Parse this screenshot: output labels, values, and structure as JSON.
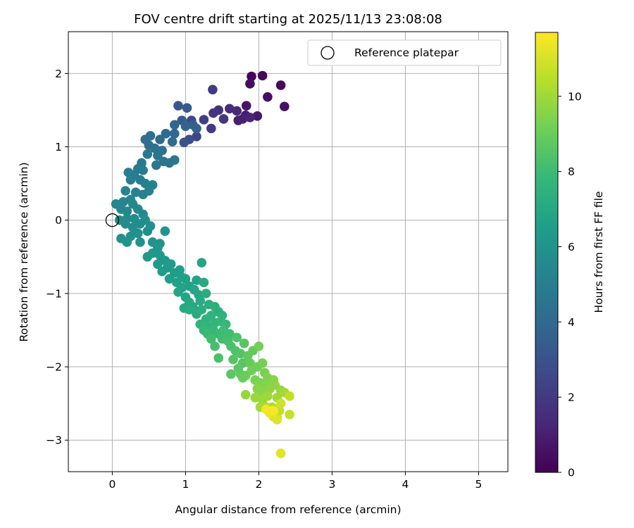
{
  "chart_data": {
    "type": "scatter",
    "title": "FOV centre drift starting at 2025/11/13 23:08:08",
    "xlabel": "Angular distance from reference (arcmin)",
    "ylabel": "Rotation from reference (arcmin)",
    "xlim": [
      -0.6,
      5.4
    ],
    "ylim": [
      -3.43,
      2.57
    ],
    "xticks": [
      0,
      1,
      2,
      3,
      4,
      5
    ],
    "xtick_labels": [
      "0",
      "1",
      "2",
      "3",
      "4",
      "5"
    ],
    "yticks": [
      -3,
      -2,
      -1,
      0,
      1,
      2
    ],
    "ytick_labels": [
      "−3",
      "−2",
      "−1",
      "0",
      "1",
      "2"
    ],
    "grid": true,
    "legend": {
      "placement": "upper-right",
      "entries": [
        "Reference platepar"
      ]
    },
    "reference_point": {
      "x": 0,
      "y": 0
    },
    "colorbar": {
      "label": "Hours from first FF file",
      "colormap": "viridis",
      "range": [
        0,
        11.7
      ],
      "ticks": [
        0,
        2,
        4,
        6,
        8,
        10
      ],
      "tick_labels": [
        "0",
        "2",
        "4",
        "6",
        "8",
        "10"
      ]
    },
    "colormap_stops": [
      "#440154",
      "#482878",
      "#3e4989",
      "#31688e",
      "#26828e",
      "#1f9e89",
      "#35b779",
      "#6ece58",
      "#b5de2b",
      "#fde725"
    ],
    "points": [
      [
        1.9,
        1.96,
        0.1
      ],
      [
        2.05,
        1.97,
        0.2
      ],
      [
        2.3,
        1.84,
        0.3
      ],
      [
        1.88,
        1.86,
        0.4
      ],
      [
        2.12,
        1.68,
        0.5
      ],
      [
        2.35,
        1.55,
        0.6
      ],
      [
        1.83,
        1.56,
        0.7
      ],
      [
        1.98,
        1.42,
        0.8
      ],
      [
        1.82,
        1.43,
        0.9
      ],
      [
        1.72,
        1.36,
        1.0
      ],
      [
        1.78,
        1.38,
        1.1
      ],
      [
        1.88,
        1.4,
        1.2
      ],
      [
        1.7,
        1.49,
        1.4
      ],
      [
        1.6,
        1.52,
        1.5
      ],
      [
        1.45,
        1.5,
        1.7
      ],
      [
        1.38,
        1.46,
        1.8
      ],
      [
        1.52,
        1.38,
        1.9
      ],
      [
        1.35,
        1.25,
        2.0
      ],
      [
        1.37,
        1.78,
        2.1
      ],
      [
        1.25,
        1.37,
        2.2
      ],
      [
        1.15,
        1.14,
        2.4
      ],
      [
        1.08,
        1.36,
        2.6
      ],
      [
        1.05,
        1.1,
        2.8
      ],
      [
        0.98,
        1.06,
        3.0
      ],
      [
        0.9,
        1.56,
        3.2
      ],
      [
        1.02,
        1.53,
        3.3
      ],
      [
        0.95,
        1.36,
        3.4
      ],
      [
        1.1,
        1.3,
        3.5
      ],
      [
        1.15,
        1.25,
        3.6
      ],
      [
        1.0,
        1.28,
        3.7
      ],
      [
        0.85,
        1.3,
        3.8
      ],
      [
        0.85,
        1.18,
        3.9
      ],
      [
        0.73,
        1.18,
        4.0
      ],
      [
        0.82,
        1.07,
        4.0
      ],
      [
        0.65,
        1.1,
        4.1
      ],
      [
        0.52,
        1.15,
        4.2
      ],
      [
        0.45,
        1.1,
        4.3
      ],
      [
        0.5,
        1.02,
        4.3
      ],
      [
        0.58,
        0.98,
        4.4
      ],
      [
        0.68,
        0.95,
        4.4
      ],
      [
        0.62,
        0.88,
        4.5
      ],
      [
        0.7,
        0.8,
        4.5
      ],
      [
        0.78,
        0.78,
        4.6
      ],
      [
        0.85,
        0.82,
        4.6
      ],
      [
        0.6,
        0.75,
        4.7
      ],
      [
        0.48,
        0.9,
        4.7
      ],
      [
        0.4,
        0.78,
        4.8
      ],
      [
        0.35,
        0.7,
        4.8
      ],
      [
        0.42,
        0.68,
        4.9
      ],
      [
        0.3,
        0.62,
        4.9
      ],
      [
        0.22,
        0.65,
        5.0
      ],
      [
        0.25,
        0.55,
        5.0
      ],
      [
        0.38,
        0.55,
        5.0
      ],
      [
        0.45,
        0.5,
        5.1
      ],
      [
        0.55,
        0.48,
        5.1
      ],
      [
        0.5,
        0.4,
        5.2
      ],
      [
        0.42,
        0.35,
        5.2
      ],
      [
        0.32,
        0.38,
        5.2
      ],
      [
        0.18,
        0.4,
        5.3
      ],
      [
        0.25,
        0.28,
        5.3
      ],
      [
        0.15,
        0.25,
        5.3
      ],
      [
        0.05,
        0.22,
        5.4
      ],
      [
        0.12,
        0.15,
        5.4
      ],
      [
        0.2,
        0.12,
        5.4
      ],
      [
        0.28,
        0.22,
        5.5
      ],
      [
        0.35,
        0.15,
        5.5
      ],
      [
        0.42,
        0.08,
        5.5
      ],
      [
        0.3,
        0.02,
        5.6
      ],
      [
        0.2,
        0.02,
        5.6
      ],
      [
        0.1,
        0.0,
        5.6
      ],
      [
        0.18,
        -0.05,
        5.7
      ],
      [
        0.28,
        -0.1,
        5.7
      ],
      [
        0.38,
        -0.05,
        5.7
      ],
      [
        0.45,
        0.0,
        5.8
      ],
      [
        0.52,
        -0.08,
        5.8
      ],
      [
        0.48,
        -0.15,
        5.8
      ],
      [
        0.35,
        -0.18,
        5.9
      ],
      [
        0.25,
        -0.22,
        5.9
      ],
      [
        0.12,
        -0.25,
        5.9
      ],
      [
        0.2,
        -0.3,
        6.0
      ],
      [
        0.38,
        -0.3,
        6.0
      ],
      [
        0.55,
        -0.3,
        6.0
      ],
      [
        0.65,
        -0.32,
        6.1
      ],
      [
        0.72,
        -0.15,
        6.1
      ],
      [
        0.62,
        -0.38,
        6.1
      ],
      [
        0.55,
        -0.45,
        6.2
      ],
      [
        0.48,
        -0.5,
        6.2
      ],
      [
        0.65,
        -0.48,
        6.2
      ],
      [
        0.72,
        -0.55,
        6.3
      ],
      [
        0.62,
        -0.6,
        6.3
      ],
      [
        0.75,
        -0.65,
        6.3
      ],
      [
        0.68,
        -0.7,
        6.4
      ],
      [
        0.8,
        -0.6,
        6.4
      ],
      [
        0.85,
        -0.72,
        6.4
      ],
      [
        0.78,
        -0.8,
        6.5
      ],
      [
        0.92,
        -0.68,
        6.5
      ],
      [
        0.95,
        -0.78,
        6.5
      ],
      [
        0.88,
        -0.85,
        6.6
      ],
      [
        1.0,
        -0.8,
        6.6
      ],
      [
        1.05,
        -0.9,
        6.7
      ],
      [
        0.95,
        -0.92,
        6.7
      ],
      [
        1.15,
        -0.82,
        6.7
      ],
      [
        1.22,
        -0.58,
        6.8
      ],
      [
        0.9,
        -0.98,
        6.8
      ],
      [
        1.0,
        -1.05,
        6.8
      ],
      [
        1.12,
        -0.95,
        6.9
      ],
      [
        1.18,
        -1.02,
        6.9
      ],
      [
        1.05,
        -1.12,
        7.0
      ],
      [
        0.98,
        -1.2,
        7.0
      ],
      [
        1.1,
        -1.18,
        7.0
      ],
      [
        1.2,
        -1.1,
        7.1
      ],
      [
        1.25,
        -0.85,
        7.1
      ],
      [
        1.28,
        -1.0,
        7.2
      ],
      [
        1.05,
        -1.22,
        7.2
      ],
      [
        1.15,
        -1.28,
        7.2
      ],
      [
        1.22,
        -1.22,
        7.3
      ],
      [
        1.32,
        -1.15,
        7.3
      ],
      [
        1.4,
        -1.18,
        7.4
      ],
      [
        1.45,
        -1.25,
        7.4
      ],
      [
        1.5,
        -1.3,
        7.5
      ],
      [
        1.35,
        -1.3,
        7.5
      ],
      [
        1.28,
        -1.35,
        7.5
      ],
      [
        1.2,
        -1.42,
        7.6
      ],
      [
        1.3,
        -1.45,
        7.6
      ],
      [
        1.4,
        -1.4,
        7.7
      ],
      [
        1.48,
        -1.38,
        7.7
      ],
      [
        1.55,
        -1.42,
        7.8
      ],
      [
        1.38,
        -1.5,
        7.8
      ],
      [
        1.25,
        -1.5,
        7.8
      ],
      [
        1.3,
        -1.55,
        7.9
      ],
      [
        1.45,
        -1.55,
        7.9
      ],
      [
        1.52,
        -1.5,
        8.0
      ],
      [
        1.6,
        -1.55,
        8.0
      ],
      [
        1.35,
        -1.62,
        8.1
      ],
      [
        1.5,
        -1.62,
        8.1
      ],
      [
        1.58,
        -1.65,
        8.2
      ],
      [
        1.4,
        -1.72,
        8.2
      ],
      [
        1.45,
        -1.88,
        8.3
      ],
      [
        1.62,
        -1.72,
        8.3
      ],
      [
        1.7,
        -1.6,
        8.4
      ],
      [
        1.68,
        -1.78,
        8.4
      ],
      [
        1.75,
        -1.82,
        8.5
      ],
      [
        1.65,
        -1.9,
        8.5
      ],
      [
        1.78,
        -1.95,
        8.6
      ],
      [
        1.8,
        -1.68,
        8.6
      ],
      [
        1.72,
        -2.02,
        8.7
      ],
      [
        1.62,
        -2.1,
        8.7
      ],
      [
        1.75,
        -2.1,
        8.8
      ],
      [
        1.85,
        -1.85,
        8.8
      ],
      [
        1.92,
        -1.78,
        8.9
      ],
      [
        1.88,
        -1.95,
        8.9
      ],
      [
        1.82,
        -2.12,
        9.0
      ],
      [
        1.78,
        -2.15,
        9.0
      ],
      [
        1.9,
        -2.05,
        9.1
      ],
      [
        1.98,
        -2.0,
        9.1
      ],
      [
        2.05,
        -1.95,
        9.2
      ],
      [
        2.0,
        -1.72,
        9.2
      ],
      [
        2.08,
        -2.08,
        9.3
      ],
      [
        1.95,
        -2.18,
        9.3
      ],
      [
        2.02,
        -2.22,
        9.4
      ],
      [
        2.12,
        -2.15,
        9.4
      ],
      [
        2.2,
        -2.18,
        9.5
      ],
      [
        2.1,
        -2.25,
        9.5
      ],
      [
        1.98,
        -2.3,
        9.6
      ],
      [
        2.05,
        -2.35,
        9.6
      ],
      [
        2.15,
        -2.3,
        9.7
      ],
      [
        2.22,
        -2.25,
        9.7
      ],
      [
        2.3,
        -2.32,
        9.8
      ],
      [
        1.82,
        -2.38,
        9.8
      ],
      [
        1.95,
        -2.42,
        9.9
      ],
      [
        2.05,
        -2.45,
        9.9
      ],
      [
        2.12,
        -2.4,
        10.0
      ],
      [
        2.25,
        -2.42,
        10.0
      ],
      [
        2.35,
        -2.35,
        10.1
      ],
      [
        2.02,
        -2.55,
        10.1
      ],
      [
        2.1,
        -2.55,
        10.2
      ],
      [
        2.18,
        -2.55,
        10.3
      ],
      [
        2.2,
        -2.65,
        10.4
      ],
      [
        2.25,
        -2.7,
        10.5
      ],
      [
        2.28,
        -2.6,
        10.6
      ],
      [
        2.42,
        -2.4,
        10.6
      ],
      [
        2.42,
        -2.65,
        10.7
      ],
      [
        2.2,
        -2.62,
        10.8
      ],
      [
        2.3,
        -2.5,
        10.9
      ],
      [
        2.2,
        -2.68,
        11.0
      ],
      [
        2.25,
        -2.72,
        11.1
      ],
      [
        2.3,
        -3.18,
        11.2
      ],
      [
        2.18,
        -2.6,
        11.3
      ],
      [
        2.15,
        -2.63,
        11.4
      ],
      [
        2.1,
        -2.58,
        11.5
      ],
      [
        2.2,
        -2.6,
        11.6
      ]
    ]
  }
}
